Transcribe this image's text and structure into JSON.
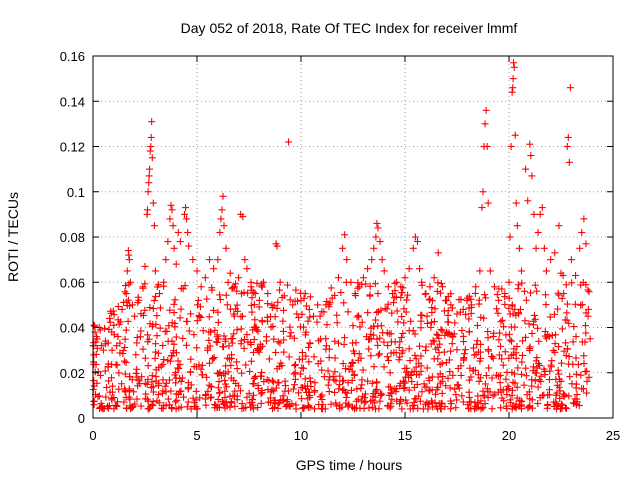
{
  "colors": {
    "series": "#ff0000",
    "background": "#ffffff",
    "axis": "#000000",
    "grid": "#a0a0a0"
  },
  "chart_data": {
    "type": "scatter",
    "title": "Day 052 of 2018, Rate Of TEC Index for receiver lmmf",
    "xlabel": "GPS time / hours",
    "ylabel": "ROTI / TECUs",
    "xlim": [
      0,
      25
    ],
    "ylim": [
      0,
      0.16
    ],
    "xticks": [
      0,
      5,
      10,
      15,
      20,
      25
    ],
    "yticks": [
      0,
      0.02,
      0.04,
      0.06,
      0.08,
      0.1,
      0.12,
      0.14,
      0.16
    ],
    "xtick_labels": [
      "0",
      "5",
      "10",
      "15",
      "20",
      "25"
    ],
    "ytick_labels": [
      "0",
      "0.02",
      "0.04",
      "0.06",
      "0.08",
      "0.1",
      "0.12",
      "0.14",
      "0.16"
    ],
    "grid": true,
    "marker": "+",
    "series": [
      {
        "name": "ROTI",
        "points": [
          [
            0.05,
            0.041
          ],
          [
            0.1,
            0.038
          ],
          [
            0.2,
            0.035
          ],
          [
            0.3,
            0.04
          ],
          [
            0.4,
            0.032
          ],
          [
            0.5,
            0.03
          ],
          [
            0.6,
            0.034
          ],
          [
            0.8,
            0.044
          ],
          [
            0.9,
            0.038
          ],
          [
            1.0,
            0.041
          ],
          [
            1.2,
            0.036
          ],
          [
            1.4,
            0.048
          ],
          [
            1.6,
            0.055
          ],
          [
            1.65,
            0.065
          ],
          [
            1.7,
            0.074
          ],
          [
            1.72,
            0.072
          ],
          [
            1.75,
            0.07
          ],
          [
            1.8,
            0.06
          ],
          [
            1.9,
            0.05
          ],
          [
            2.0,
            0.045
          ],
          [
            2.2,
            0.052
          ],
          [
            2.4,
            0.058
          ],
          [
            2.5,
            0.067
          ],
          [
            2.6,
            0.09
          ],
          [
            2.62,
            0.092
          ],
          [
            2.65,
            0.1
          ],
          [
            2.68,
            0.104
          ],
          [
            2.7,
            0.107
          ],
          [
            2.72,
            0.11
          ],
          [
            2.75,
            0.118
          ],
          [
            2.78,
            0.12
          ],
          [
            2.8,
            0.124
          ],
          [
            2.82,
            0.131
          ],
          [
            2.85,
            0.115
          ],
          [
            2.9,
            0.095
          ],
          [
            2.95,
            0.085
          ],
          [
            3.0,
            0.065
          ],
          [
            3.2,
            0.055
          ],
          [
            3.4,
            0.06
          ],
          [
            3.5,
            0.07
          ],
          [
            3.6,
            0.078
          ],
          [
            3.7,
            0.088
          ],
          [
            3.75,
            0.094
          ],
          [
            3.8,
            0.092
          ],
          [
            3.85,
            0.085
          ],
          [
            3.9,
            0.075
          ],
          [
            4.0,
            0.068
          ],
          [
            4.1,
            0.082
          ],
          [
            4.2,
            0.078
          ],
          [
            4.4,
            0.09
          ],
          [
            4.45,
            0.093
          ],
          [
            4.5,
            0.088
          ],
          [
            4.55,
            0.082
          ],
          [
            4.6,
            0.076
          ],
          [
            4.8,
            0.07
          ],
          [
            5.0,
            0.065
          ],
          [
            5.2,
            0.058
          ],
          [
            5.4,
            0.062
          ],
          [
            5.6,
            0.07
          ],
          [
            5.8,
            0.066
          ],
          [
            6.0,
            0.07
          ],
          [
            6.1,
            0.082
          ],
          [
            6.15,
            0.088
          ],
          [
            6.2,
            0.092
          ],
          [
            6.25,
            0.098
          ],
          [
            6.3,
            0.085
          ],
          [
            6.4,
            0.075
          ],
          [
            6.6,
            0.064
          ],
          [
            6.8,
            0.058
          ],
          [
            7.0,
            0.062
          ],
          [
            7.1,
            0.09
          ],
          [
            7.2,
            0.089
          ],
          [
            7.3,
            0.07
          ],
          [
            7.4,
            0.066
          ],
          [
            7.6,
            0.058
          ],
          [
            7.8,
            0.055
          ],
          [
            8.0,
            0.052
          ],
          [
            8.2,
            0.06
          ],
          [
            8.4,
            0.055
          ],
          [
            8.6,
            0.05
          ],
          [
            8.8,
            0.077
          ],
          [
            8.85,
            0.076
          ],
          [
            9.0,
            0.06
          ],
          [
            9.2,
            0.054
          ],
          [
            9.4,
            0.122
          ],
          [
            9.6,
            0.05
          ],
          [
            9.8,
            0.046
          ],
          [
            10.0,
            0.052
          ],
          [
            10.2,
            0.055
          ],
          [
            10.4,
            0.048
          ],
          [
            10.6,
            0.045
          ],
          [
            10.8,
            0.05
          ],
          [
            11.0,
            0.047
          ],
          [
            11.2,
            0.05
          ],
          [
            11.5,
            0.053
          ],
          [
            11.8,
            0.062
          ],
          [
            12.0,
            0.075
          ],
          [
            12.1,
            0.081
          ],
          [
            12.2,
            0.07
          ],
          [
            12.4,
            0.06
          ],
          [
            12.6,
            0.055
          ],
          [
            12.8,
            0.058
          ],
          [
            13.0,
            0.062
          ],
          [
            13.2,
            0.066
          ],
          [
            13.4,
            0.07
          ],
          [
            13.5,
            0.075
          ],
          [
            13.6,
            0.08
          ],
          [
            13.65,
            0.086
          ],
          [
            13.7,
            0.084
          ],
          [
            13.8,
            0.078
          ],
          [
            13.9,
            0.07
          ],
          [
            14.0,
            0.065
          ],
          [
            14.2,
            0.058
          ],
          [
            14.4,
            0.055
          ],
          [
            14.6,
            0.06
          ],
          [
            14.8,
            0.058
          ],
          [
            15.0,
            0.062
          ],
          [
            15.2,
            0.066
          ],
          [
            15.4,
            0.075
          ],
          [
            15.5,
            0.08
          ],
          [
            15.6,
            0.078
          ],
          [
            15.7,
            0.066
          ],
          [
            15.8,
            0.06
          ],
          [
            16.0,
            0.055
          ],
          [
            16.2,
            0.058
          ],
          [
            16.4,
            0.062
          ],
          [
            16.6,
            0.073
          ],
          [
            16.8,
            0.058
          ],
          [
            17.0,
            0.052
          ],
          [
            17.2,
            0.05
          ],
          [
            17.5,
            0.046
          ],
          [
            17.8,
            0.048
          ],
          [
            18.0,
            0.053
          ],
          [
            18.2,
            0.05
          ],
          [
            18.4,
            0.058
          ],
          [
            18.6,
            0.065
          ],
          [
            18.7,
            0.093
          ],
          [
            18.75,
            0.1
          ],
          [
            18.8,
            0.12
          ],
          [
            18.85,
            0.13
          ],
          [
            18.9,
            0.136
          ],
          [
            18.95,
            0.12
          ],
          [
            19.0,
            0.095
          ],
          [
            19.1,
            0.065
          ],
          [
            19.3,
            0.058
          ],
          [
            19.5,
            0.052
          ],
          [
            19.8,
            0.055
          ],
          [
            20.0,
            0.06
          ],
          [
            20.05,
            0.08
          ],
          [
            20.1,
            0.12
          ],
          [
            20.15,
            0.144
          ],
          [
            20.18,
            0.146
          ],
          [
            20.2,
            0.15
          ],
          [
            20.22,
            0.157
          ],
          [
            20.25,
            0.155
          ],
          [
            20.3,
            0.125
          ],
          [
            20.35,
            0.095
          ],
          [
            20.4,
            0.085
          ],
          [
            20.5,
            0.075
          ],
          [
            20.6,
            0.065
          ],
          [
            20.8,
            0.11
          ],
          [
            20.9,
            0.096
          ],
          [
            21.0,
            0.121
          ],
          [
            21.05,
            0.116
          ],
          [
            21.1,
            0.107
          ],
          [
            21.2,
            0.09
          ],
          [
            21.3,
            0.075
          ],
          [
            21.4,
            0.082
          ],
          [
            21.5,
            0.09
          ],
          [
            21.6,
            0.093
          ],
          [
            21.7,
            0.075
          ],
          [
            21.8,
            0.065
          ],
          [
            22.0,
            0.07
          ],
          [
            22.2,
            0.073
          ],
          [
            22.4,
            0.085
          ],
          [
            22.5,
            0.064
          ],
          [
            22.6,
            0.063
          ],
          [
            22.8,
            0.12
          ],
          [
            22.85,
            0.124
          ],
          [
            22.9,
            0.113
          ],
          [
            22.95,
            0.146
          ],
          [
            23.0,
            0.07
          ],
          [
            23.2,
            0.063
          ],
          [
            23.4,
            0.075
          ],
          [
            23.5,
            0.082
          ],
          [
            23.6,
            0.088
          ],
          [
            23.7,
            0.077
          ],
          [
            23.8,
            0.045
          ],
          [
            23.9,
            0.035
          ]
        ]
      }
    ]
  }
}
